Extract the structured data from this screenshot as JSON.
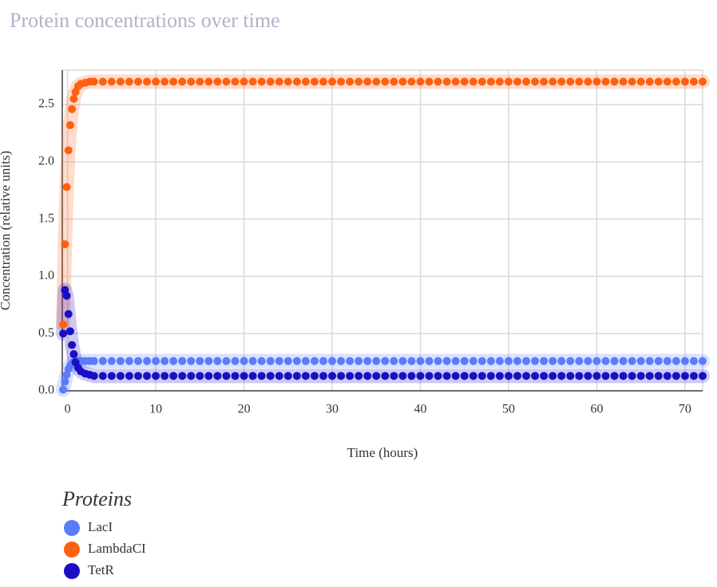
{
  "chart_data": {
    "type": "scatter",
    "title": "Protein concentrations over time",
    "x_label": "Time (hours)",
    "y_label": "Concentration (relative units)",
    "legend_title": "Proteins",
    "xlim": [
      -0.6,
      72
    ],
    "ylim": [
      0,
      2.8
    ],
    "xticks": [
      0,
      10,
      20,
      30,
      40,
      50,
      60,
      70
    ],
    "yticks": [
      {
        "value": 0,
        "label": "0.0"
      },
      0.5,
      {
        "value": 1,
        "label": "1.0"
      },
      1.5,
      {
        "value": 2,
        "label": "2.0"
      },
      2.5
    ],
    "grid": true,
    "x": [
      -0.5,
      -0.3,
      -0.1,
      0.1,
      0.3,
      0.5,
      0.7,
      0.9,
      1.2,
      1.5,
      2,
      2.5,
      3,
      4,
      5,
      6,
      7,
      8,
      9,
      10,
      11,
      12,
      13,
      14,
      15,
      16,
      17,
      18,
      19,
      20,
      21,
      22,
      23,
      24,
      25,
      26,
      27,
      28,
      29,
      30,
      31,
      32,
      33,
      34,
      35,
      36,
      37,
      38,
      39,
      40,
      41,
      42,
      43,
      44,
      45,
      46,
      47,
      48,
      49,
      50,
      51,
      52,
      53,
      54,
      55,
      56,
      57,
      58,
      59,
      60,
      61,
      62,
      63,
      64,
      65,
      66,
      67,
      68,
      69,
      70,
      71,
      72
    ],
    "series": [
      {
        "name": "LacI",
        "color": "#5a7bfc",
        "values": [
          0.01,
          0.08,
          0.14,
          0.19,
          0.22,
          0.24,
          0.25,
          0.26,
          0.26,
          0.26,
          0.26,
          0.26,
          0.26,
          0.26,
          0.26,
          0.26,
          0.26,
          0.26,
          0.26,
          0.26,
          0.26,
          0.26,
          0.26,
          0.26,
          0.26,
          0.26,
          0.26,
          0.26,
          0.26,
          0.26,
          0.26,
          0.26,
          0.26,
          0.26,
          0.26,
          0.26,
          0.26,
          0.26,
          0.26,
          0.26,
          0.26,
          0.26,
          0.26,
          0.26,
          0.26,
          0.26,
          0.26,
          0.26,
          0.26,
          0.26,
          0.26,
          0.26,
          0.26,
          0.26,
          0.26,
          0.26,
          0.26,
          0.26,
          0.26,
          0.26,
          0.26,
          0.26,
          0.26,
          0.26,
          0.26,
          0.26,
          0.26,
          0.26,
          0.26,
          0.26,
          0.26,
          0.26,
          0.26,
          0.26,
          0.26,
          0.26,
          0.26,
          0.26,
          0.26,
          0.26,
          0.26,
          0.26
        ]
      },
      {
        "name": "LambdaCI",
        "color": "#ff6010",
        "values": [
          0.58,
          1.28,
          1.78,
          2.1,
          2.32,
          2.46,
          2.55,
          2.61,
          2.66,
          2.68,
          2.69,
          2.7,
          2.7,
          2.7,
          2.7,
          2.7,
          2.7,
          2.7,
          2.7,
          2.7,
          2.7,
          2.7,
          2.7,
          2.7,
          2.7,
          2.7,
          2.7,
          2.7,
          2.7,
          2.7,
          2.7,
          2.7,
          2.7,
          2.7,
          2.7,
          2.7,
          2.7,
          2.7,
          2.7,
          2.7,
          2.7,
          2.7,
          2.7,
          2.7,
          2.7,
          2.7,
          2.7,
          2.7,
          2.7,
          2.7,
          2.7,
          2.7,
          2.7,
          2.7,
          2.7,
          2.7,
          2.7,
          2.7,
          2.7,
          2.7,
          2.7,
          2.7,
          2.7,
          2.7,
          2.7,
          2.7,
          2.7,
          2.7,
          2.7,
          2.7,
          2.7,
          2.7,
          2.7,
          2.7,
          2.7,
          2.7,
          2.7,
          2.7,
          2.7,
          2.7,
          2.7,
          2.7
        ]
      },
      {
        "name": "TetR",
        "color": "#1a0fc4",
        "values": [
          0.5,
          0.88,
          0.83,
          0.67,
          0.52,
          0.4,
          0.32,
          0.25,
          0.2,
          0.17,
          0.15,
          0.14,
          0.13,
          0.13,
          0.13,
          0.13,
          0.13,
          0.13,
          0.13,
          0.13,
          0.13,
          0.13,
          0.13,
          0.13,
          0.13,
          0.13,
          0.13,
          0.13,
          0.13,
          0.13,
          0.13,
          0.13,
          0.13,
          0.13,
          0.13,
          0.13,
          0.13,
          0.13,
          0.13,
          0.13,
          0.13,
          0.13,
          0.13,
          0.13,
          0.13,
          0.13,
          0.13,
          0.13,
          0.13,
          0.13,
          0.13,
          0.13,
          0.13,
          0.13,
          0.13,
          0.13,
          0.13,
          0.13,
          0.13,
          0.13,
          0.13,
          0.13,
          0.13,
          0.13,
          0.13,
          0.13,
          0.13,
          0.13,
          0.13,
          0.13,
          0.13,
          0.13,
          0.13,
          0.13,
          0.13,
          0.13,
          0.13,
          0.13,
          0.13,
          0.13,
          0.13,
          0.13
        ]
      }
    ]
  }
}
